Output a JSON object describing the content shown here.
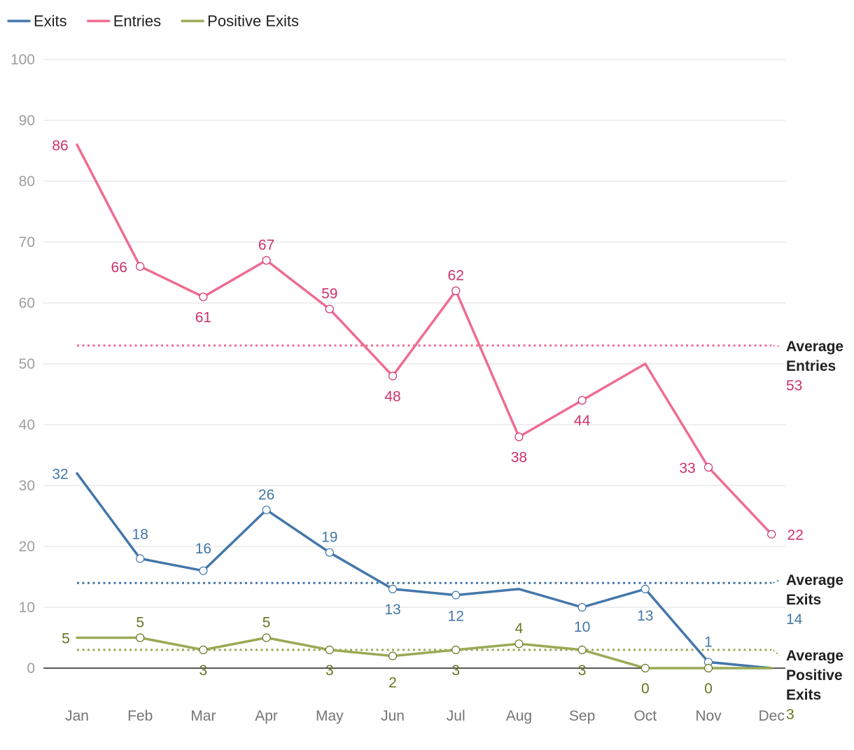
{
  "chart_data": {
    "type": "line",
    "title": "",
    "xlabel": "",
    "ylabel": "",
    "ylim": [
      0,
      100
    ],
    "y_ticks": [
      0,
      10,
      20,
      30,
      40,
      50,
      60,
      70,
      80,
      90,
      100
    ],
    "grid": true,
    "legend_position": "top-left",
    "categories": [
      "Jan",
      "Feb",
      "Mar",
      "Apr",
      "May",
      "Jun",
      "Jul",
      "Aug",
      "Sep",
      "Oct",
      "Nov",
      "Dec"
    ],
    "series": [
      {
        "name": "Exits",
        "color": "#4477aa",
        "label_color": "#4477aa",
        "values": [
          32,
          18,
          16,
          26,
          19,
          13,
          12,
          13,
          10,
          13,
          1,
          0
        ],
        "labels": [
          "32",
          "18",
          "16",
          "26",
          "19",
          "13",
          "12",
          "",
          "10",
          "13",
          "1",
          ""
        ],
        "average": 14,
        "average_label": [
          "Average",
          "Exits"
        ],
        "average_value": "14"
      },
      {
        "name": "Entries",
        "color": "#ee6d91",
        "label_color": "#cc3366",
        "values": [
          86,
          66,
          61,
          67,
          59,
          48,
          62,
          38,
          44,
          50,
          33,
          22
        ],
        "labels": [
          "86",
          "66",
          "61",
          "67",
          "59",
          "48",
          "62",
          "38",
          "44",
          "",
          "33",
          "22"
        ],
        "average": 53,
        "average_label": [
          "Average",
          "Entries"
        ],
        "average_value": "53"
      },
      {
        "name": "Positive Exits",
        "color": "#99aa55",
        "label_color": "#667722",
        "values": [
          5,
          5,
          3,
          5,
          3,
          2,
          3,
          4,
          3,
          0,
          0,
          0
        ],
        "labels": [
          "5",
          "5",
          "3",
          "5",
          "3",
          "2",
          "3",
          "4",
          "3",
          "0",
          "0",
          ""
        ],
        "average": 3,
        "average_label": [
          "Average",
          "Positive",
          "Exits"
        ],
        "average_value": "3"
      }
    ]
  }
}
